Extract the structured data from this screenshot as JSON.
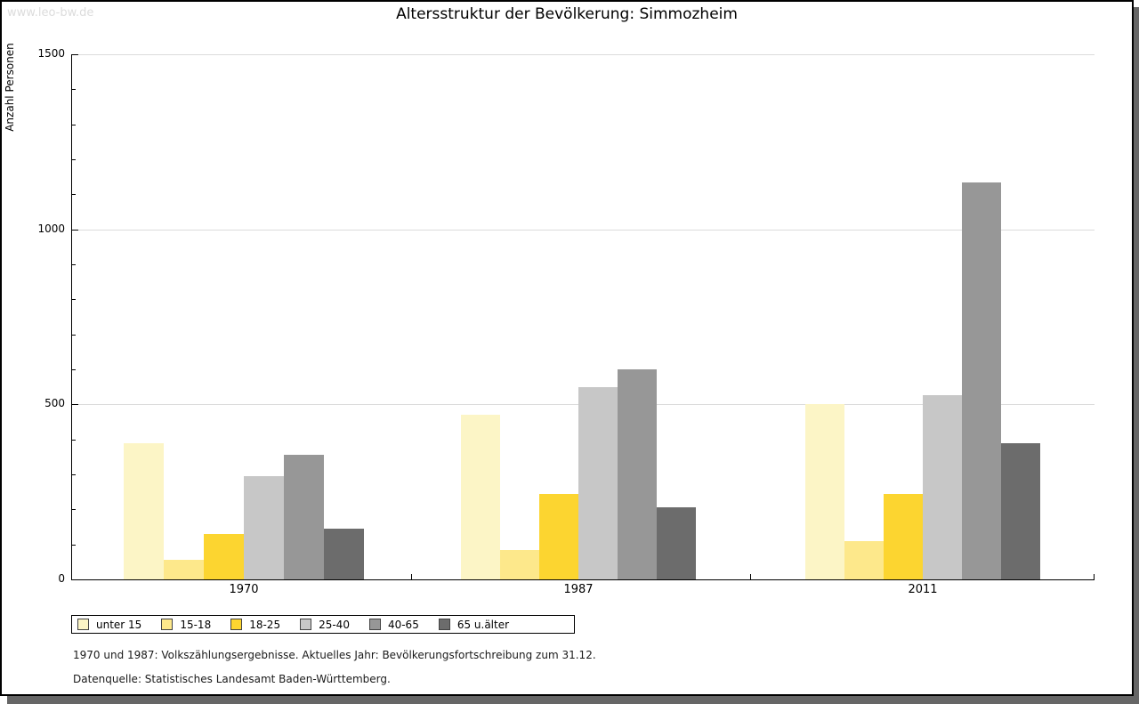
{
  "watermark": "www.leo-bw.de",
  "chart_data": {
    "type": "bar",
    "title": "Altersstruktur der Bevölkerung: Simmozheim",
    "ylabel": "Anzahl Personen",
    "xlabel": "",
    "ylim": [
      0,
      1500
    ],
    "yticks": [
      0,
      500,
      1000,
      1500
    ],
    "minor_tick_step": 100,
    "grid": true,
    "legend_position": "bottom-left",
    "categories": [
      "1970",
      "1987",
      "2011"
    ],
    "series": [
      {
        "name": "unter 15",
        "color": "#FCF5C6",
        "values": [
          390,
          470,
          500
        ]
      },
      {
        "name": "15-18",
        "color": "#FDE88B",
        "values": [
          55,
          85,
          110
        ]
      },
      {
        "name": "18-25",
        "color": "#FCD530",
        "values": [
          130,
          245,
          245
        ]
      },
      {
        "name": "25-40",
        "color": "#C7C7C7",
        "values": [
          295,
          550,
          525
        ]
      },
      {
        "name": "40-65",
        "color": "#979797",
        "values": [
          355,
          600,
          1135
        ]
      },
      {
        "name": "65 u.älter",
        "color": "#6C6C6C",
        "values": [
          145,
          205,
          390
        ]
      }
    ]
  },
  "footnotes": [
    "1970 und 1987: Volkszählungsergebnisse. Aktuelles Jahr: Bevölkerungsfortschreibung zum 31.12.",
    "Datenquelle: Statistisches Landesamt Baden-Württemberg."
  ],
  "colors": {
    "gridline": "#dcdcdc",
    "watermark": "#dcdcdc",
    "frame_shadow": "#666666",
    "axis": "#000000"
  }
}
